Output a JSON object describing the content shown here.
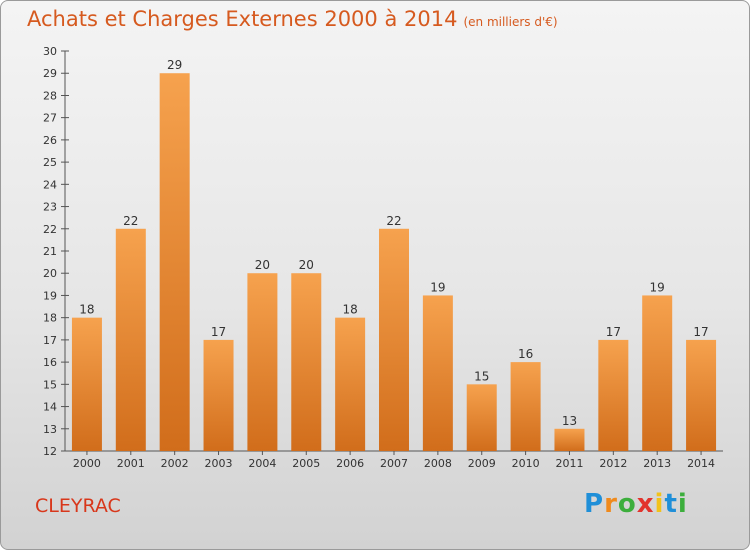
{
  "title": "Achats et Charges Externes 2000 à 2014",
  "unit_note": "(en milliers d'€)",
  "city": "CLEYRAC",
  "logo": {
    "letters": [
      "P",
      "r",
      "o",
      "x",
      "i",
      "t",
      "i"
    ],
    "colors": [
      "#1f8fd8",
      "#f08a1c",
      "#3cae3c",
      "#e2342d",
      "#f2c21a",
      "#1f8fd8",
      "#3cae3c"
    ]
  },
  "colors": {
    "bar_top": "#f6a24e",
    "bar_bottom": "#d16d1b",
    "accent": "#d65a1f"
  },
  "chart_data": {
    "type": "bar",
    "title": "Achats et Charges Externes 2000 à 2014",
    "xlabel": "",
    "ylabel": "",
    "categories": [
      "2000",
      "2001",
      "2002",
      "2003",
      "2004",
      "2005",
      "2006",
      "2007",
      "2008",
      "2009",
      "2010",
      "2011",
      "2012",
      "2013",
      "2014"
    ],
    "values": [
      18,
      22,
      29,
      17,
      20,
      20,
      18,
      22,
      19,
      15,
      16,
      13,
      17,
      19,
      17
    ],
    "ylim": [
      12,
      30
    ],
    "yticks": [
      12,
      13,
      14,
      15,
      16,
      17,
      18,
      19,
      20,
      21,
      22,
      23,
      24,
      25,
      26,
      27,
      28,
      29,
      30
    ],
    "grid": false
  }
}
